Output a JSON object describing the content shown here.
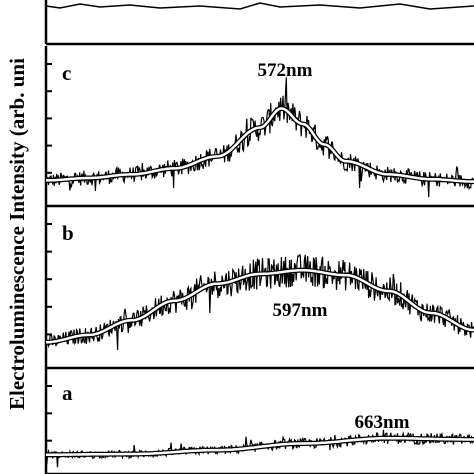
{
  "chart_data": [
    {
      "type": "line",
      "panel": "c",
      "peak_label": "572nm",
      "x": [
        0,
        0.1,
        0.2,
        0.3,
        0.4,
        0.5,
        0.55,
        0.6,
        0.65,
        0.7,
        0.8,
        0.9,
        1.0
      ],
      "series": [
        {
          "values": [
            0.08,
            0.1,
            0.13,
            0.18,
            0.28,
            0.52,
            0.68,
            0.55,
            0.38,
            0.24,
            0.13,
            0.09,
            0.07
          ]
        }
      ]
    },
    {
      "type": "line",
      "panel": "b",
      "peak_label": "597nm",
      "x": [
        0,
        0.1,
        0.2,
        0.3,
        0.4,
        0.5,
        0.6,
        0.7,
        0.8,
        0.9,
        1.0
      ],
      "series": [
        {
          "values": [
            0.08,
            0.14,
            0.26,
            0.42,
            0.56,
            0.64,
            0.67,
            0.63,
            0.5,
            0.32,
            0.18
          ]
        }
      ]
    },
    {
      "type": "line",
      "panel": "a",
      "peak_label": "663nm",
      "x": [
        0,
        0.2,
        0.4,
        0.6,
        0.8,
        1.0
      ],
      "series": [
        {
          "values": [
            0.05,
            0.06,
            0.12,
            0.22,
            0.3,
            0.28
          ]
        }
      ]
    }
  ],
  "ylabel": "Electroluminescence Intensity (arb. uni",
  "colors": {
    "data": "#000000",
    "fit": "#ffffff",
    "axes": "#000000"
  }
}
